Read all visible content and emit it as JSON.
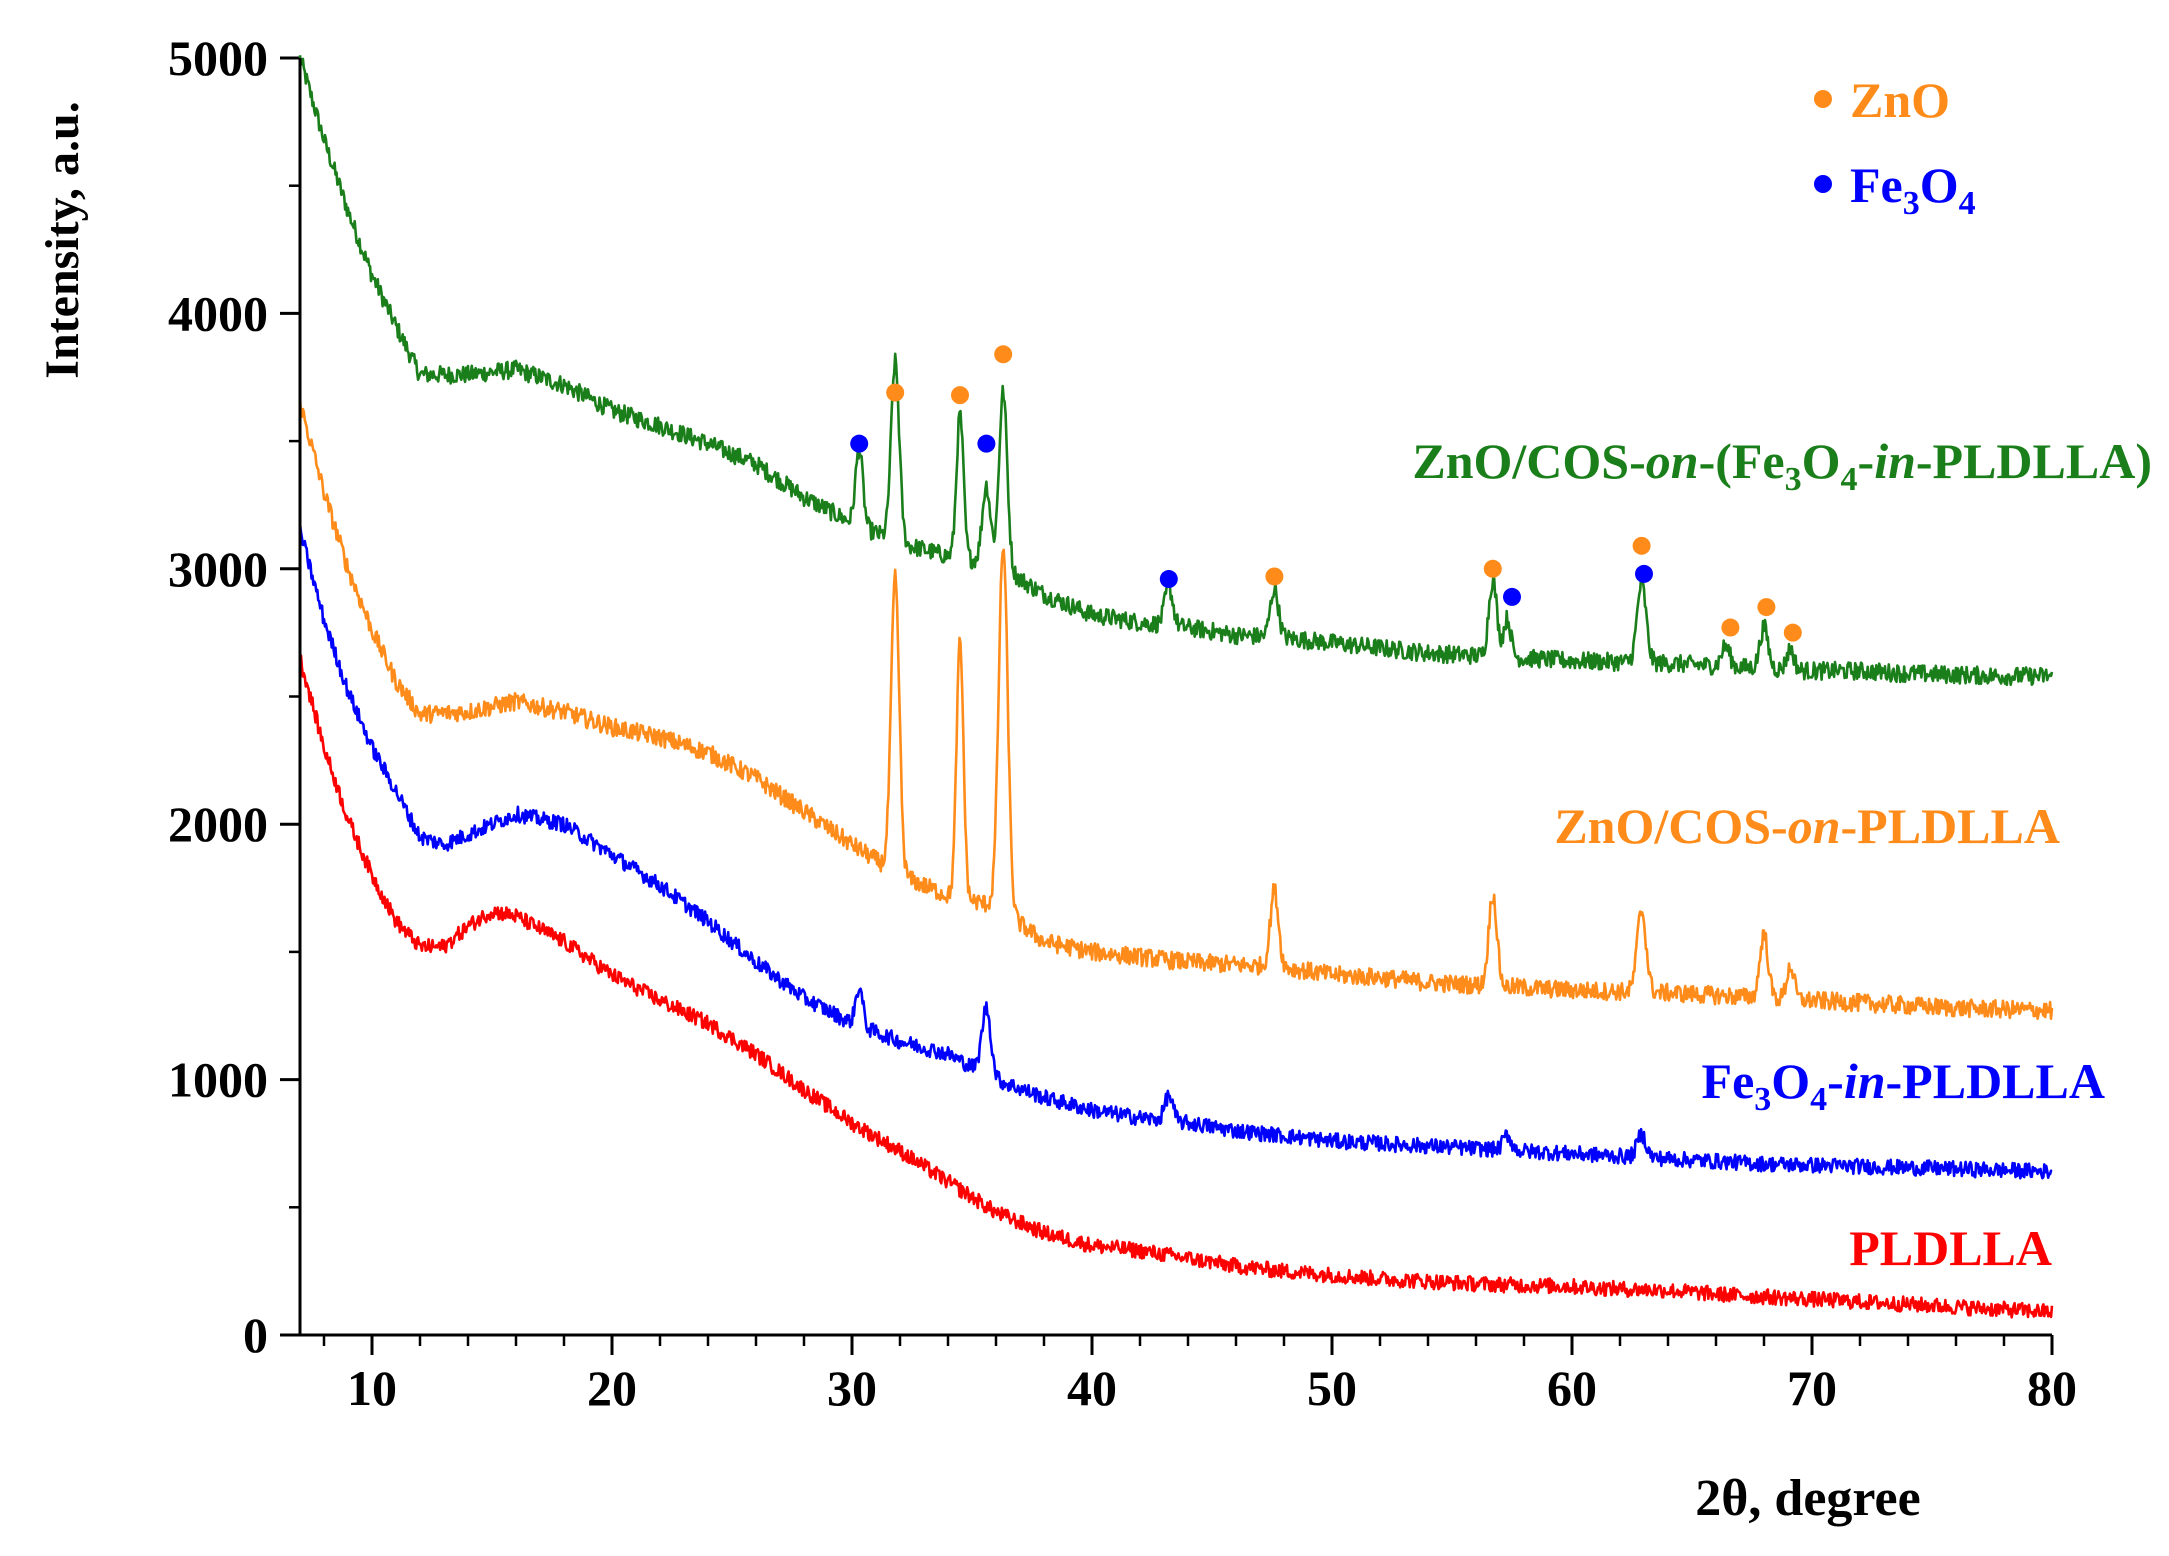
{
  "chart_data": {
    "type": "line",
    "xlabel": "2θ, degree",
    "ylabel": "Intensity, a.u.",
    "xlim": [
      7,
      80
    ],
    "ylim": [
      0,
      5000
    ],
    "x_ticks": [
      10,
      20,
      30,
      40,
      50,
      60,
      70,
      80
    ],
    "y_ticks": [
      0,
      1000,
      2000,
      3000,
      4000,
      5000
    ],
    "legend": {
      "placement": "top-right",
      "entries": [
        {
          "label": "ZnO",
          "marker": "orange-circle",
          "color": "#FF8C1A"
        },
        {
          "label_parts": [
            "Fe",
            "3",
            "O",
            "4"
          ],
          "marker": "blue-circle",
          "color": "#0000FF"
        }
      ]
    },
    "series": [
      {
        "name": "ZnO/COS-on-(Fe3O4-in-PLDLLA)",
        "color": "#1A7F1A",
        "label_parts": [
          {
            "t": "ZnO/COS-"
          },
          {
            "t": "on",
            "i": true
          },
          {
            "t": "-(Fe"
          },
          {
            "t": "3",
            "sub": true
          },
          {
            "t": "O"
          },
          {
            "t": "4",
            "sub": true
          },
          {
            "t": "-"
          },
          {
            "t": "in",
            "i": true
          },
          {
            "t": "-PLDLLA)"
          }
        ],
        "baseline": [
          [
            7,
            5000
          ],
          [
            8,
            4680
          ],
          [
            9,
            4400
          ],
          [
            10,
            4150
          ],
          [
            11,
            3950
          ],
          [
            12,
            3760
          ],
          [
            14,
            3760
          ],
          [
            16,
            3780
          ],
          [
            18,
            3720
          ],
          [
            20,
            3620
          ],
          [
            22,
            3560
          ],
          [
            24,
            3490
          ],
          [
            26,
            3410
          ],
          [
            28,
            3280
          ],
          [
            30,
            3180
          ],
          [
            32,
            3100
          ],
          [
            34,
            3050
          ],
          [
            36,
            3020
          ],
          [
            38,
            2900
          ],
          [
            40,
            2820
          ],
          [
            42,
            2790
          ],
          [
            44,
            2770
          ],
          [
            46,
            2740
          ],
          [
            48,
            2730
          ],
          [
            50,
            2710
          ],
          [
            52,
            2690
          ],
          [
            54,
            2670
          ],
          [
            56,
            2660
          ],
          [
            58,
            2650
          ],
          [
            60,
            2640
          ],
          [
            62,
            2635
          ],
          [
            64,
            2630
          ],
          [
            66,
            2620
          ],
          [
            68,
            2610
          ],
          [
            70,
            2600
          ],
          [
            72,
            2600
          ],
          [
            74,
            2590
          ],
          [
            76,
            2585
          ],
          [
            78,
            2580
          ],
          [
            80,
            2580
          ]
        ],
        "peaks": [
          [
            30.3,
            300,
            0.18
          ],
          [
            31.8,
            700,
            0.2
          ],
          [
            34.5,
            560,
            0.17
          ],
          [
            35.6,
            300,
            0.2
          ],
          [
            36.3,
            690,
            0.2
          ],
          [
            43.2,
            150,
            0.2
          ],
          [
            47.6,
            190,
            0.2
          ],
          [
            56.7,
            300,
            0.2
          ],
          [
            57.3,
            150,
            0.18
          ],
          [
            62.9,
            310,
            0.22
          ],
          [
            66.4,
            80,
            0.2
          ],
          [
            68.0,
            160,
            0.2
          ],
          [
            69.1,
            80,
            0.18
          ]
        ],
        "noise": 35
      },
      {
        "name": "ZnO/COS-on-PLDLLA",
        "color": "#FF8C1A",
        "label_parts": [
          {
            "t": "ZnO/COS-"
          },
          {
            "t": "on",
            "i": true
          },
          {
            "t": "-PLDLLA"
          }
        ],
        "baseline": [
          [
            7,
            3650
          ],
          [
            8,
            3300
          ],
          [
            9,
            3000
          ],
          [
            10,
            2760
          ],
          [
            11,
            2560
          ],
          [
            12,
            2430
          ],
          [
            14,
            2440
          ],
          [
            16,
            2480
          ],
          [
            18,
            2440
          ],
          [
            20,
            2380
          ],
          [
            22,
            2340
          ],
          [
            24,
            2280
          ],
          [
            26,
            2180
          ],
          [
            28,
            2050
          ],
          [
            30,
            1920
          ],
          [
            32,
            1800
          ],
          [
            34,
            1720
          ],
          [
            36,
            1680
          ],
          [
            38,
            1540
          ],
          [
            40,
            1500
          ],
          [
            42,
            1480
          ],
          [
            44,
            1460
          ],
          [
            46,
            1450
          ],
          [
            48,
            1440
          ],
          [
            50,
            1410
          ],
          [
            52,
            1400
          ],
          [
            54,
            1380
          ],
          [
            56,
            1370
          ],
          [
            58,
            1360
          ],
          [
            60,
            1350
          ],
          [
            62,
            1345
          ],
          [
            64,
            1340
          ],
          [
            66,
            1330
          ],
          [
            68,
            1320
          ],
          [
            70,
            1310
          ],
          [
            72,
            1300
          ],
          [
            74,
            1290
          ],
          [
            76,
            1280
          ],
          [
            78,
            1275
          ],
          [
            80,
            1270
          ]
        ],
        "peaks": [
          [
            31.8,
            1150,
            0.2
          ],
          [
            34.5,
            1000,
            0.17
          ],
          [
            36.3,
            1430,
            0.22
          ],
          [
            47.6,
            300,
            0.2
          ],
          [
            56.7,
            360,
            0.2
          ],
          [
            62.9,
            320,
            0.22
          ],
          [
            68.0,
            250,
            0.2
          ],
          [
            69.1,
            130,
            0.18
          ]
        ],
        "noise": 35
      },
      {
        "name": "Fe3O4-in-PLDLLA",
        "color": "#0000FF",
        "label_parts": [
          {
            "t": "Fe"
          },
          {
            "t": "3",
            "sub": true
          },
          {
            "t": "O"
          },
          {
            "t": "4",
            "sub": true
          },
          {
            "t": "-"
          },
          {
            "t": "in",
            "i": true
          },
          {
            "t": "-PLDLLA"
          }
        ],
        "baseline": [
          [
            7,
            3150
          ],
          [
            8,
            2800
          ],
          [
            9,
            2520
          ],
          [
            10,
            2300
          ],
          [
            11,
            2130
          ],
          [
            12,
            1950
          ],
          [
            13,
            1920
          ],
          [
            14,
            1960
          ],
          [
            16,
            2040
          ],
          [
            18,
            2000
          ],
          [
            20,
            1880
          ],
          [
            22,
            1760
          ],
          [
            24,
            1620
          ],
          [
            26,
            1460
          ],
          [
            28,
            1320
          ],
          [
            30,
            1220
          ],
          [
            32,
            1150
          ],
          [
            34,
            1100
          ],
          [
            36,
            1000
          ],
          [
            38,
            930
          ],
          [
            40,
            880
          ],
          [
            42,
            850
          ],
          [
            44,
            830
          ],
          [
            46,
            800
          ],
          [
            48,
            780
          ],
          [
            50,
            760
          ],
          [
            52,
            750
          ],
          [
            54,
            740
          ],
          [
            56,
            730
          ],
          [
            58,
            720
          ],
          [
            60,
            710
          ],
          [
            62,
            700
          ],
          [
            64,
            690
          ],
          [
            66,
            680
          ],
          [
            68,
            670
          ],
          [
            70,
            665
          ],
          [
            72,
            660
          ],
          [
            74,
            655
          ],
          [
            76,
            650
          ],
          [
            78,
            645
          ],
          [
            80,
            640
          ]
        ],
        "peaks": [
          [
            30.3,
            150,
            0.18
          ],
          [
            35.6,
            260,
            0.22
          ],
          [
            43.2,
            100,
            0.2
          ],
          [
            57.3,
            60,
            0.2
          ],
          [
            62.9,
            90,
            0.22
          ]
        ],
        "noise": 30
      },
      {
        "name": "PLDLLA",
        "color": "#FF0000",
        "label_parts": [
          {
            "t": "PLDLLA"
          }
        ],
        "baseline": [
          [
            7,
            2650
          ],
          [
            8,
            2300
          ],
          [
            9,
            2020
          ],
          [
            10,
            1800
          ],
          [
            11,
            1620
          ],
          [
            12,
            1520
          ],
          [
            13,
            1520
          ],
          [
            14,
            1600
          ],
          [
            15,
            1660
          ],
          [
            16,
            1640
          ],
          [
            18,
            1540
          ],
          [
            20,
            1410
          ],
          [
            22,
            1310
          ],
          [
            24,
            1220
          ],
          [
            26,
            1100
          ],
          [
            28,
            960
          ],
          [
            30,
            830
          ],
          [
            32,
            720
          ],
          [
            34,
            600
          ],
          [
            36,
            480
          ],
          [
            38,
            400
          ],
          [
            40,
            350
          ],
          [
            42,
            330
          ],
          [
            44,
            300
          ],
          [
            46,
            270
          ],
          [
            48,
            250
          ],
          [
            50,
            235
          ],
          [
            52,
            220
          ],
          [
            54,
            210
          ],
          [
            56,
            200
          ],
          [
            58,
            195
          ],
          [
            60,
            190
          ],
          [
            62,
            180
          ],
          [
            64,
            175
          ],
          [
            66,
            160
          ],
          [
            68,
            150
          ],
          [
            70,
            140
          ],
          [
            72,
            130
          ],
          [
            74,
            120
          ],
          [
            76,
            110
          ],
          [
            78,
            100
          ],
          [
            80,
            90
          ]
        ],
        "peaks": [],
        "noise": 30
      }
    ],
    "annotations": [
      {
        "x": 30.3,
        "y": 3490,
        "phase": "Fe3O4",
        "color": "#0000FF"
      },
      {
        "x": 31.8,
        "y": 3690,
        "phase": "ZnO",
        "color": "#FF8C1A"
      },
      {
        "x": 34.5,
        "y": 3680,
        "phase": "ZnO",
        "color": "#FF8C1A"
      },
      {
        "x": 35.6,
        "y": 3490,
        "phase": "Fe3O4",
        "color": "#0000FF"
      },
      {
        "x": 36.3,
        "y": 3840,
        "phase": "ZnO",
        "color": "#FF8C1A"
      },
      {
        "x": 43.2,
        "y": 2960,
        "phase": "Fe3O4",
        "color": "#0000FF"
      },
      {
        "x": 47.6,
        "y": 2970,
        "phase": "ZnO",
        "color": "#FF8C1A"
      },
      {
        "x": 56.7,
        "y": 3000,
        "phase": "ZnO",
        "color": "#FF8C1A"
      },
      {
        "x": 57.5,
        "y": 2890,
        "phase": "Fe3O4",
        "color": "#0000FF"
      },
      {
        "x": 62.9,
        "y": 3090,
        "phase": "ZnO",
        "color": "#FF8C1A"
      },
      {
        "x": 63.0,
        "y": 2980,
        "phase": "Fe3O4",
        "color": "#0000FF"
      },
      {
        "x": 66.6,
        "y": 2770,
        "phase": "ZnO",
        "color": "#FF8C1A"
      },
      {
        "x": 68.1,
        "y": 2850,
        "phase": "ZnO",
        "color": "#FF8C1A"
      },
      {
        "x": 69.2,
        "y": 2750,
        "phase": "ZnO",
        "color": "#FF8C1A"
      }
    ]
  }
}
